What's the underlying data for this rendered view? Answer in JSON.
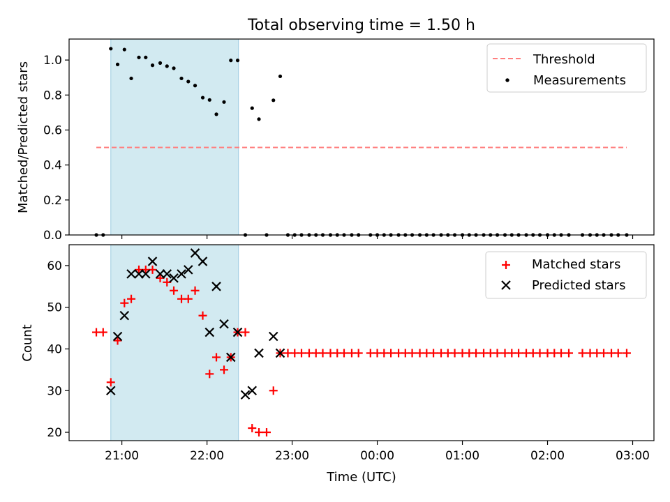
{
  "chart_data": {
    "title": "Total observing time = 1.50 h",
    "xlabel": "Time (UTC)",
    "x_unit": "hours since 00:00 UTC (negative = previous evening)",
    "xlim": [
      -3.62,
      3.25
    ],
    "xticks": [
      {
        "value": -3,
        "label": "21:00"
      },
      {
        "value": -2,
        "label": "22:00"
      },
      {
        "value": -1,
        "label": "23:00"
      },
      {
        "value": 0,
        "label": "00:00"
      },
      {
        "value": 1,
        "label": "01:00"
      },
      {
        "value": 2,
        "label": "02:00"
      },
      {
        "value": 3,
        "label": "03:00"
      }
    ],
    "shaded_span": {
      "x0": -3.13,
      "x1": -1.63,
      "color": "#add8e6"
    },
    "panels": [
      {
        "type": "scatter",
        "ylabel": "Matched/Predicted stars",
        "ylim": [
          0,
          1.12
        ],
        "yticks": [
          "0.0",
          "0.2",
          "0.4",
          "0.6",
          "0.8",
          "1.0"
        ],
        "ytick_values": [
          0,
          0.2,
          0.4,
          0.6,
          0.8,
          1.0
        ],
        "legend_position": "top-right",
        "series": [
          {
            "name": "Threshold",
            "kind": "dashed-line",
            "color": "#ff7f7f",
            "x": [
              -3.3,
              2.93
            ],
            "y": [
              0.5,
              0.5
            ]
          },
          {
            "name": "Measurements",
            "kind": "dot",
            "color": "#000000",
            "x": [
              -3.3,
              -3.22,
              -3.13,
              -3.05,
              -2.97,
              -2.89,
              -2.8,
              -2.72,
              -2.64,
              -2.55,
              -2.47,
              -2.39,
              -2.3,
              -2.22,
              -2.14,
              -2.05,
              -1.97,
              -1.89,
              -1.8,
              -1.72,
              -1.64,
              -1.55,
              -1.47,
              -1.39,
              -1.3,
              -1.22,
              -1.14,
              -1.05,
              -0.97,
              -0.89,
              -0.8,
              -0.72,
              -0.64,
              -0.55,
              -0.47,
              -0.39,
              -0.3,
              -0.22,
              -0.08,
              0.0,
              0.08,
              0.16,
              0.25,
              0.33,
              0.41,
              0.5,
              0.58,
              0.66,
              0.75,
              0.83,
              0.91,
              1.0,
              1.08,
              1.16,
              1.25,
              1.33,
              1.41,
              1.5,
              1.58,
              1.66,
              1.75,
              1.83,
              1.91,
              2.0,
              2.08,
              2.16,
              2.25,
              2.41,
              2.5,
              2.58,
              2.66,
              2.75,
              2.83,
              2.93
            ],
            "y": [
              0,
              0,
              1.065,
              0.975,
              1.06,
              0.895,
              1.015,
              1.015,
              0.97,
              0.983,
              0.965,
              0.953,
              0.895,
              0.877,
              0.854,
              0.785,
              0.772,
              0.69,
              0.76,
              0.998,
              0.998,
              0,
              0.725,
              0.662,
              0,
              0.77,
              0.907,
              0,
              0,
              0,
              0,
              0,
              0,
              0,
              0,
              0,
              0,
              0,
              0,
              0,
              0,
              0,
              0,
              0,
              0,
              0,
              0,
              0,
              0,
              0,
              0,
              0,
              0,
              0,
              0,
              0,
              0,
              0,
              0,
              0,
              0,
              0,
              0,
              0,
              0,
              0,
              0,
              0,
              0,
              0,
              0,
              0,
              0,
              0
            ]
          }
        ]
      },
      {
        "type": "scatter",
        "ylabel": "Count",
        "ylim": [
          18,
          65
        ],
        "yticks": [
          "20",
          "30",
          "40",
          "50",
          "60"
        ],
        "ytick_values": [
          20,
          30,
          40,
          50,
          60
        ],
        "legend_position": "top-right",
        "series": [
          {
            "name": "Matched stars",
            "kind": "plus",
            "color": "#ff0000",
            "x": [
              -3.3,
              -3.22,
              -3.13,
              -3.05,
              -2.97,
              -2.89,
              -2.8,
              -2.72,
              -2.64,
              -2.55,
              -2.47,
              -2.39,
              -2.3,
              -2.22,
              -2.14,
              -2.05,
              -1.97,
              -1.89,
              -1.8,
              -1.72,
              -1.64,
              -1.55,
              -1.47,
              -1.39,
              -1.3,
              -1.22,
              -1.14,
              -1.05,
              -0.97,
              -0.89,
              -0.8,
              -0.72,
              -0.64,
              -0.55,
              -0.47,
              -0.39,
              -0.3,
              -0.22,
              -0.08,
              0.0,
              0.08,
              0.16,
              0.25,
              0.33,
              0.41,
              0.5,
              0.58,
              0.66,
              0.75,
              0.83,
              0.91,
              1.0,
              1.08,
              1.16,
              1.25,
              1.33,
              1.41,
              1.5,
              1.58,
              1.66,
              1.75,
              1.83,
              1.91,
              2.0,
              2.08,
              2.16,
              2.25,
              2.41,
              2.5,
              2.58,
              2.66,
              2.75,
              2.83,
              2.93
            ],
            "y": [
              44,
              44,
              32,
              42,
              51,
              52,
              59,
              59,
              59,
              57,
              56,
              54,
              52,
              52,
              54,
              48,
              34,
              38,
              35,
              38,
              44,
              44,
              21,
              20,
              20,
              30,
              39,
              39,
              39,
              39,
              39,
              39,
              39,
              39,
              39,
              39,
              39,
              39,
              39,
              39,
              39,
              39,
              39,
              39,
              39,
              39,
              39,
              39,
              39,
              39,
              39,
              39,
              39,
              39,
              39,
              39,
              39,
              39,
              39,
              39,
              39,
              39,
              39,
              39,
              39,
              39,
              39,
              39,
              39,
              39,
              39,
              39,
              39,
              39
            ]
          },
          {
            "name": "Predicted stars",
            "kind": "cross",
            "color": "#000000",
            "x": [
              -3.13,
              -3.05,
              -2.97,
              -2.89,
              -2.8,
              -2.72,
              -2.64,
              -2.55,
              -2.47,
              -2.39,
              -2.3,
              -2.22,
              -2.14,
              -2.05,
              -1.97,
              -1.89,
              -1.8,
              -1.72,
              -1.64,
              -1.55,
              -1.47,
              -1.39,
              -1.22,
              -1.14
            ],
            "y": [
              30,
              43,
              48,
              58,
              58,
              58,
              61,
              58,
              58,
              57,
              58,
              59,
              63,
              61,
              44,
              55,
              46,
              38,
              44,
              29,
              30,
              39,
              43,
              39
            ]
          }
        ]
      }
    ]
  }
}
